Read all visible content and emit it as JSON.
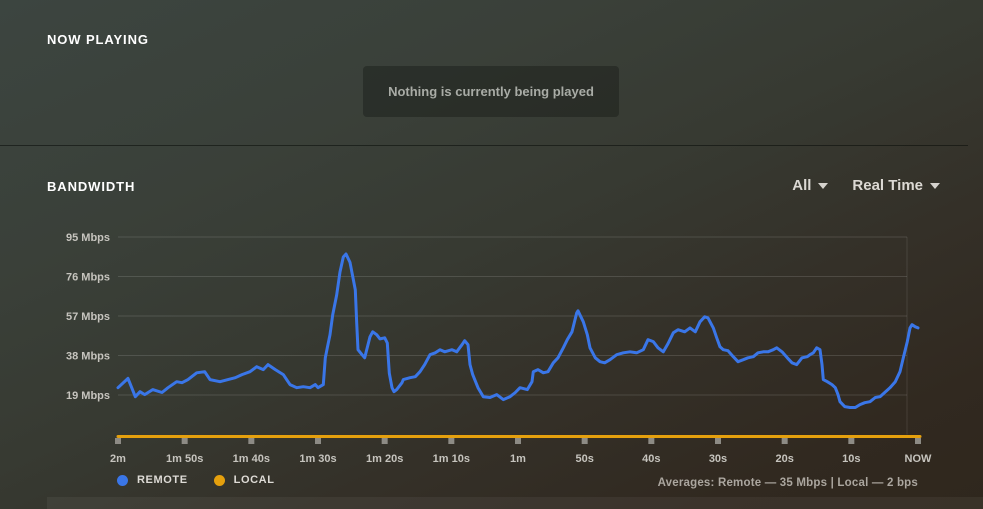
{
  "now_playing": {
    "title": "NOW PLAYING",
    "empty_message": "Nothing is currently being played"
  },
  "bandwidth": {
    "title": "BANDWIDTH",
    "filters": {
      "source": "All",
      "mode": "Real Time"
    },
    "legend": [
      {
        "label": "REMOTE",
        "color": "#3a76e8"
      },
      {
        "label": "LOCAL",
        "color": "#e5a00d"
      }
    ],
    "averages_text": "Averages: Remote — 35 Mbps | Local — 2 bps"
  },
  "chart_data": {
    "type": "line",
    "title": "Bandwidth (Real Time)",
    "ylabel": "Mbps",
    "ylim": [
      0,
      105
    ],
    "x_range_seconds_ago": [
      120,
      0
    ],
    "grid": "horizontal",
    "legend_position": "bottom-left",
    "y_ticks": [
      "95 Mbps",
      "76 Mbps",
      "57 Mbps",
      "38 Mbps",
      "19 Mbps"
    ],
    "y_tick_values": [
      95,
      76,
      57,
      38,
      19
    ],
    "x_ticks": [
      "2m",
      "1m 50s",
      "1m 40s",
      "1m 30s",
      "1m 20s",
      "1m 10s",
      "1m",
      "50s",
      "40s",
      "30s",
      "20s",
      "10s",
      "NOW"
    ],
    "averages": {
      "remote": "35 Mbps",
      "local": "2 bps"
    },
    "series": [
      {
        "name": "REMOTE",
        "color": "#3a76e8",
        "unit": "Mbps",
        "points": [
          [
            120,
            22.5
          ],
          [
            118.5,
            27
          ],
          [
            117.4,
            18.2
          ],
          [
            116.7,
            20.6
          ],
          [
            116,
            19.2
          ],
          [
            114.8,
            21.6
          ],
          [
            113.4,
            20.2
          ],
          [
            112.5,
            22.5
          ],
          [
            111.2,
            25.4
          ],
          [
            110.4,
            24.9
          ],
          [
            109.5,
            26.4
          ],
          [
            108.2,
            29.7
          ],
          [
            107,
            30.2
          ],
          [
            106.2,
            26.4
          ],
          [
            104.7,
            25.4
          ],
          [
            103.5,
            26.4
          ],
          [
            102.4,
            27.3
          ],
          [
            101.4,
            28.8
          ],
          [
            100.2,
            30.2
          ],
          [
            99.2,
            32.6
          ],
          [
            98.2,
            31.2
          ],
          [
            97.5,
            33.6
          ],
          [
            96.4,
            31.2
          ],
          [
            95.2,
            28.8
          ],
          [
            94.2,
            24
          ],
          [
            93.2,
            22.5
          ],
          [
            92.2,
            23
          ],
          [
            91.2,
            22.5
          ],
          [
            90.4,
            24
          ],
          [
            90,
            22.5
          ],
          [
            89.2,
            24
          ],
          [
            88.9,
            36.9
          ],
          [
            88.6,
            41.7
          ],
          [
            88.2,
            48
          ],
          [
            87.8,
            57.6
          ],
          [
            87.2,
            67.2
          ],
          [
            86.7,
            78.2
          ],
          [
            86.2,
            85.4
          ],
          [
            85.8,
            86.8
          ],
          [
            85.2,
            82.8
          ],
          [
            84.4,
            69.6
          ],
          [
            84.2,
            53.7
          ],
          [
            84,
            40.8
          ],
          [
            83.4,
            38.4
          ],
          [
            83,
            36.9
          ],
          [
            82.2,
            47
          ],
          [
            81.8,
            49.4
          ],
          [
            81.2,
            48
          ],
          [
            80.7,
            46
          ],
          [
            80,
            46.5
          ],
          [
            79.6,
            44
          ],
          [
            79.3,
            29.5
          ],
          [
            78.9,
            22.5
          ],
          [
            78.6,
            20.6
          ],
          [
            78.2,
            21.6
          ],
          [
            77.4,
            24.9
          ],
          [
            77.2,
            26.4
          ],
          [
            76.2,
            27.3
          ],
          [
            75.4,
            27.8
          ],
          [
            74.7,
            30.2
          ],
          [
            74,
            33.6
          ],
          [
            73.2,
            38.4
          ],
          [
            72.4,
            39.3
          ],
          [
            71.7,
            40.8
          ],
          [
            71,
            39.8
          ],
          [
            69.9,
            40.8
          ],
          [
            69.2,
            39.8
          ],
          [
            68.4,
            43.2
          ],
          [
            68,
            45.1
          ],
          [
            67.5,
            43.2
          ],
          [
            67.2,
            33.6
          ],
          [
            66.8,
            28.8
          ],
          [
            66,
            22.5
          ],
          [
            65.2,
            18.2
          ],
          [
            64.2,
            17.8
          ],
          [
            63.2,
            19.2
          ],
          [
            62.2,
            16.8
          ],
          [
            61.2,
            18.2
          ],
          [
            60.4,
            20.2
          ],
          [
            59.7,
            22.5
          ],
          [
            58.6,
            21.6
          ],
          [
            57.9,
            25.4
          ],
          [
            57.7,
            30.2
          ],
          [
            57,
            31.2
          ],
          [
            56.2,
            29.7
          ],
          [
            55.5,
            30.2
          ],
          [
            54.7,
            34.5
          ],
          [
            54,
            36.9
          ],
          [
            53.2,
            41.7
          ],
          [
            52.6,
            45.6
          ],
          [
            51.9,
            49.4
          ],
          [
            51.2,
            58.5
          ],
          [
            51,
            59.5
          ],
          [
            50.2,
            54.2
          ],
          [
            49.6,
            48
          ],
          [
            49.2,
            41.7
          ],
          [
            48.4,
            36.9
          ],
          [
            47.7,
            35
          ],
          [
            47,
            34.5
          ],
          [
            46.2,
            36
          ],
          [
            45.2,
            38.4
          ],
          [
            44.2,
            39.3
          ],
          [
            43.2,
            39.8
          ],
          [
            42.2,
            39.3
          ],
          [
            41.2,
            40.8
          ],
          [
            40.5,
            45.6
          ],
          [
            39.7,
            44.7
          ],
          [
            39,
            41.7
          ],
          [
            38.2,
            39.8
          ],
          [
            37.5,
            43.7
          ],
          [
            36.7,
            48.9
          ],
          [
            36,
            50.4
          ],
          [
            35,
            49.4
          ],
          [
            34.2,
            51.3
          ],
          [
            33.4,
            49.4
          ],
          [
            32.7,
            54.2
          ],
          [
            32,
            56.6
          ],
          [
            31.5,
            56.1
          ],
          [
            30.7,
            51.3
          ],
          [
            30.2,
            46.5
          ],
          [
            29.7,
            42.2
          ],
          [
            29.2,
            40.8
          ],
          [
            28.5,
            40.3
          ],
          [
            27.7,
            37.4
          ],
          [
            27,
            35
          ],
          [
            26.2,
            36
          ],
          [
            25.5,
            36.9
          ],
          [
            24.7,
            37.4
          ],
          [
            24,
            39.3
          ],
          [
            23.2,
            39.8
          ],
          [
            22.5,
            39.8
          ],
          [
            21.7,
            40.8
          ],
          [
            21.2,
            41.7
          ],
          [
            20.4,
            39.8
          ],
          [
            19.6,
            36.9
          ],
          [
            18.9,
            34.5
          ],
          [
            18.2,
            33.6
          ],
          [
            17.4,
            36.9
          ],
          [
            16.6,
            37.4
          ],
          [
            16.2,
            38.4
          ],
          [
            15.7,
            39.3
          ],
          [
            15.2,
            41.7
          ],
          [
            14.7,
            40.8
          ],
          [
            14.4,
            33.6
          ],
          [
            14.2,
            26.4
          ],
          [
            13.6,
            25.4
          ],
          [
            12.9,
            24
          ],
          [
            12.4,
            22.5
          ],
          [
            12,
            19.2
          ],
          [
            11.7,
            15.8
          ],
          [
            11,
            13.4
          ],
          [
            10.2,
            13
          ],
          [
            9.4,
            13
          ],
          [
            8.7,
            14.4
          ],
          [
            8,
            15.3
          ],
          [
            7.2,
            15.8
          ],
          [
            6.4,
            17.8
          ],
          [
            5.7,
            18.2
          ],
          [
            5,
            20.2
          ],
          [
            4.2,
            22.5
          ],
          [
            3.4,
            25.4
          ],
          [
            2.7,
            30.2
          ],
          [
            2.2,
            36.9
          ],
          [
            1.6,
            44.7
          ],
          [
            1.2,
            51.3
          ],
          [
            0.9,
            52.8
          ],
          [
            0.4,
            51.8
          ],
          [
            0,
            51.3
          ]
        ]
      },
      {
        "name": "LOCAL",
        "color": "#e5a00d",
        "unit": "bps",
        "points": [
          [
            120,
            0
          ],
          [
            0,
            0
          ]
        ]
      }
    ]
  }
}
